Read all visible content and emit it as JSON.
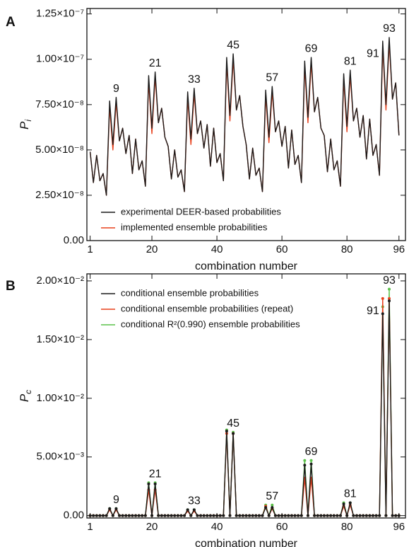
{
  "chart_data": [
    {
      "type": "line",
      "panel": "A",
      "x_label": "combination number",
      "y_label": {
        "main": "P",
        "sub": "i"
      },
      "legend": "lower left",
      "x": [
        1,
        2,
        3,
        4,
        5,
        6,
        7,
        8,
        9,
        10,
        11,
        12,
        13,
        14,
        15,
        16,
        17,
        18,
        19,
        20,
        21,
        22,
        23,
        24,
        25,
        26,
        27,
        28,
        29,
        30,
        31,
        32,
        33,
        34,
        35,
        36,
        37,
        38,
        39,
        40,
        41,
        42,
        43,
        44,
        45,
        46,
        47,
        48,
        49,
        50,
        51,
        52,
        53,
        54,
        55,
        56,
        57,
        58,
        59,
        60,
        61,
        62,
        63,
        64,
        65,
        66,
        67,
        68,
        69,
        70,
        71,
        72,
        73,
        74,
        75,
        76,
        77,
        78,
        79,
        80,
        81,
        82,
        83,
        84,
        85,
        86,
        87,
        88,
        89,
        90,
        91,
        92,
        93,
        94,
        95,
        96
      ],
      "xlim": [
        0,
        98
      ],
      "xticks": [
        1,
        20,
        40,
        60,
        80,
        96
      ],
      "ylim": [
        0,
        1.28e-07
      ],
      "yticks": [
        {
          "value": 0,
          "label": "0.00"
        },
        {
          "value": 2.5e-08,
          "label": "2.50×10⁻⁸"
        },
        {
          "value": 5e-08,
          "label": "5.00×10⁻⁸"
        },
        {
          "value": 7.5e-08,
          "label": "7.50×10⁻⁸"
        },
        {
          "value": 1e-07,
          "label": "1.00×10⁻⁷"
        },
        {
          "value": 1.25e-07,
          "label": "1.25×10⁻⁷"
        }
      ],
      "markers": false,
      "series": [
        {
          "name": "implemented ensemble probabilities",
          "color": "#e8401c",
          "values": [
            4.9e-08,
            3.2e-08,
            4.7e-08,
            3.3e-08,
            3.7e-08,
            2.5e-08,
            7.4e-08,
            5e-08,
            7.6e-08,
            5.5e-08,
            6.2e-08,
            4.8e-08,
            5.8e-08,
            3.7e-08,
            5.6e-08,
            3.9e-08,
            4.4e-08,
            3e-08,
            8.8e-08,
            5.9e-08,
            9e-08,
            6.5e-08,
            7.3e-08,
            5.7e-08,
            5.2e-08,
            3.4e-08,
            5e-08,
            3.5e-08,
            3.9e-08,
            2.7e-08,
            7.9e-08,
            5.3e-08,
            8.1e-08,
            5.9e-08,
            6.6e-08,
            5.1e-08,
            6.4e-08,
            4.1e-08,
            6.2e-08,
            4.3e-08,
            4.8e-08,
            3.3e-08,
            9.8e-08,
            6.6e-08,
            1e-07,
            7.2e-08,
            8e-08,
            6.3e-08,
            5.3e-08,
            3.4e-08,
            5.1e-08,
            3.6e-08,
            4e-08,
            2.7e-08,
            8e-08,
            5.4e-08,
            8.2e-08,
            6e-08,
            6.6e-08,
            5.2e-08,
            6.3e-08,
            4e-08,
            6.1e-08,
            4.2e-08,
            4.7e-08,
            3.2e-08,
            9.6e-08,
            6.5e-08,
            9.8e-08,
            7.1e-08,
            7.9e-08,
            6.2e-08,
            5.8e-08,
            3.8e-08,
            5.6e-08,
            3.9e-08,
            4.4e-08,
            3e-08,
            8.9e-08,
            6e-08,
            9.1e-08,
            6.6e-08,
            7.3e-08,
            5.7e-08,
            6.9e-08,
            4.5e-08,
            6.7e-08,
            4.7e-08,
            5.3e-08,
            3.6e-08,
            1.07e-07,
            7.2e-08,
            1.09e-07,
            7.8e-08,
            8.7e-08,
            5.8e-08
          ]
        },
        {
          "name": "experimental DEER-based probabilities",
          "color": "#1a1a1a",
          "values": [
            4.9e-08,
            3.2e-08,
            4.7e-08,
            3.3e-08,
            3.7e-08,
            2.5e-08,
            7.7e-08,
            5.3e-08,
            7.9e-08,
            5.5e-08,
            6.2e-08,
            4.8e-08,
            5.8e-08,
            3.7e-08,
            5.6e-08,
            3.9e-08,
            4.4e-08,
            3e-08,
            9.1e-08,
            6.2e-08,
            9.3e-08,
            6.5e-08,
            7.3e-08,
            5.7e-08,
            5.2e-08,
            3.4e-08,
            5e-08,
            3.5e-08,
            3.9e-08,
            2.7e-08,
            8.2e-08,
            5.6e-08,
            8.4e-08,
            5.9e-08,
            6.6e-08,
            5.1e-08,
            6.4e-08,
            4.1e-08,
            6.2e-08,
            4.3e-08,
            4.8e-08,
            3.3e-08,
            1.01e-07,
            6.9e-08,
            1.03e-07,
            7.2e-08,
            8e-08,
            6.3e-08,
            5.3e-08,
            3.4e-08,
            5.1e-08,
            3.6e-08,
            4e-08,
            2.7e-08,
            8.3e-08,
            5.7e-08,
            8.5e-08,
            6e-08,
            6.6e-08,
            5.2e-08,
            6.3e-08,
            4e-08,
            6.1e-08,
            4.2e-08,
            4.7e-08,
            3.2e-08,
            9.9e-08,
            6.8e-08,
            1.01e-07,
            7.1e-08,
            7.9e-08,
            6.2e-08,
            5.8e-08,
            3.8e-08,
            5.6e-08,
            3.9e-08,
            4.4e-08,
            3e-08,
            9.2e-08,
            6.3e-08,
            9.4e-08,
            6.6e-08,
            7.3e-08,
            5.7e-08,
            6.9e-08,
            4.5e-08,
            6.7e-08,
            4.7e-08,
            5.3e-08,
            3.6e-08,
            1.1e-07,
            7.5e-08,
            1.12e-07,
            7.8e-08,
            8.7e-08,
            5.8e-08
          ]
        }
      ],
      "legend_order": [
        1,
        0
      ],
      "annotations": [
        {
          "text": "9",
          "x": 9
        },
        {
          "text": "21",
          "x": 21
        },
        {
          "text": "33",
          "x": 33
        },
        {
          "text": "45",
          "x": 45
        },
        {
          "text": "57",
          "x": 57
        },
        {
          "text": "69",
          "x": 69
        },
        {
          "text": "81",
          "x": 81
        },
        {
          "text": "91",
          "x": 91
        },
        {
          "text": "93",
          "x": 93
        }
      ]
    },
    {
      "type": "line",
      "panel": "B",
      "x_label": "combination number",
      "y_label": {
        "main": "P",
        "sub": "c"
      },
      "legend": "upper left",
      "x": [
        1,
        2,
        3,
        4,
        5,
        6,
        7,
        8,
        9,
        10,
        11,
        12,
        13,
        14,
        15,
        16,
        17,
        18,
        19,
        20,
        21,
        22,
        23,
        24,
        25,
        26,
        27,
        28,
        29,
        30,
        31,
        32,
        33,
        34,
        35,
        36,
        37,
        38,
        39,
        40,
        41,
        42,
        43,
        44,
        45,
        46,
        47,
        48,
        49,
        50,
        51,
        52,
        53,
        54,
        55,
        56,
        57,
        58,
        59,
        60,
        61,
        62,
        63,
        64,
        65,
        66,
        67,
        68,
        69,
        70,
        71,
        72,
        73,
        74,
        75,
        76,
        77,
        78,
        79,
        80,
        81,
        82,
        83,
        84,
        85,
        86,
        87,
        88,
        89,
        90,
        91,
        92,
        93,
        94,
        95,
        96
      ],
      "xlim": [
        0,
        98
      ],
      "xticks": [
        1,
        20,
        40,
        60,
        80,
        96
      ],
      "ylim": [
        -0.0002,
        0.0206
      ],
      "yticks": [
        {
          "value": 0,
          "label": "0.00"
        },
        {
          "value": 0.005,
          "label": "5.00×10⁻³"
        },
        {
          "value": 0.01,
          "label": "1.00×10⁻²"
        },
        {
          "value": 0.015,
          "label": "1.50×10⁻²"
        },
        {
          "value": 0.02,
          "label": "2.00×10⁻²"
        }
      ],
      "markers": true,
      "series": [
        {
          "name": "conditional R²(0.990) ensemble probabilities",
          "color": "#5cc24a",
          "values": [
            0,
            0,
            0,
            0,
            0,
            0,
            0.0006,
            0,
            0.0006,
            0,
            0,
            0,
            0,
            0,
            0,
            0,
            0,
            0,
            0.0028,
            0,
            0.0028,
            0,
            0,
            0,
            0,
            0,
            0,
            0,
            0,
            0,
            0.0005,
            0,
            0.0005,
            0,
            0,
            0,
            0,
            0,
            0,
            0,
            0,
            0,
            0.0073,
            0,
            0.0071,
            0,
            0,
            0,
            0,
            0,
            0,
            0,
            0,
            0,
            0.0009,
            0,
            0.0009,
            0,
            0,
            0,
            0,
            0,
            0,
            0,
            0,
            0,
            0.0047,
            0,
            0.0047,
            0,
            0,
            0,
            0,
            0,
            0,
            0,
            0,
            0,
            0.0011,
            0,
            0.0011,
            0,
            0,
            0,
            0,
            0,
            0,
            0,
            0,
            0,
            0.0178,
            0,
            0.0193,
            0,
            0,
            0
          ]
        },
        {
          "name": "conditional ensemble probabilities (repeat)",
          "color": "#e8401c",
          "values": [
            0,
            0,
            0,
            0,
            0,
            0,
            0.0005,
            0,
            0.0005,
            0,
            0,
            0,
            0,
            0,
            0,
            0,
            0,
            0,
            0.0022,
            0,
            0.0022,
            0,
            0,
            0,
            0,
            0,
            0,
            0,
            0,
            0,
            0.0004,
            0,
            0.0004,
            0,
            0,
            0,
            0,
            0,
            0,
            0,
            0,
            0,
            0.007,
            0,
            0.007,
            0,
            0,
            0,
            0,
            0,
            0,
            0,
            0,
            0,
            0.0008,
            0,
            0.0006,
            0,
            0,
            0,
            0,
            0,
            0,
            0,
            0,
            0,
            0.0032,
            0,
            0.0032,
            0,
            0,
            0,
            0,
            0,
            0,
            0,
            0,
            0,
            0.0008,
            0,
            0.0009,
            0,
            0,
            0,
            0,
            0,
            0,
            0,
            0,
            0,
            0.0185,
            0,
            0.0185,
            0,
            0,
            0
          ]
        },
        {
          "name": "conditional ensemble probabilities",
          "color": "#1a1a1a",
          "values": [
            0,
            0,
            0,
            0,
            0,
            0,
            0.0006,
            0,
            0.0006,
            0,
            0,
            0,
            0,
            0,
            0,
            0,
            0,
            0,
            0.0027,
            0,
            0.0027,
            0,
            0,
            0,
            0,
            0,
            0,
            0,
            0,
            0,
            0.0005,
            0,
            0.0005,
            0,
            0,
            0,
            0,
            0,
            0,
            0,
            0,
            0,
            0.0072,
            0,
            0.007,
            0,
            0,
            0,
            0,
            0,
            0,
            0,
            0,
            0,
            0.0007,
            0,
            0.0007,
            0,
            0,
            0,
            0,
            0,
            0,
            0,
            0,
            0,
            0.0043,
            0,
            0.0044,
            0,
            0,
            0,
            0,
            0,
            0,
            0,
            0,
            0,
            0.001,
            0,
            0.0011,
            0,
            0,
            0,
            0,
            0,
            0,
            0,
            0,
            0,
            0.0172,
            0,
            0.0183,
            0,
            0,
            0
          ]
        }
      ],
      "legend_order": [
        2,
        1,
        0
      ],
      "annotations": [
        {
          "text": "9",
          "x": 9
        },
        {
          "text": "21",
          "x": 21
        },
        {
          "text": "33",
          "x": 33
        },
        {
          "text": "45",
          "x": 45
        },
        {
          "text": "57",
          "x": 57
        },
        {
          "text": "69",
          "x": 69
        },
        {
          "text": "81",
          "x": 81
        },
        {
          "text": "91",
          "x": 91
        },
        {
          "text": "93",
          "x": 93
        }
      ]
    }
  ]
}
